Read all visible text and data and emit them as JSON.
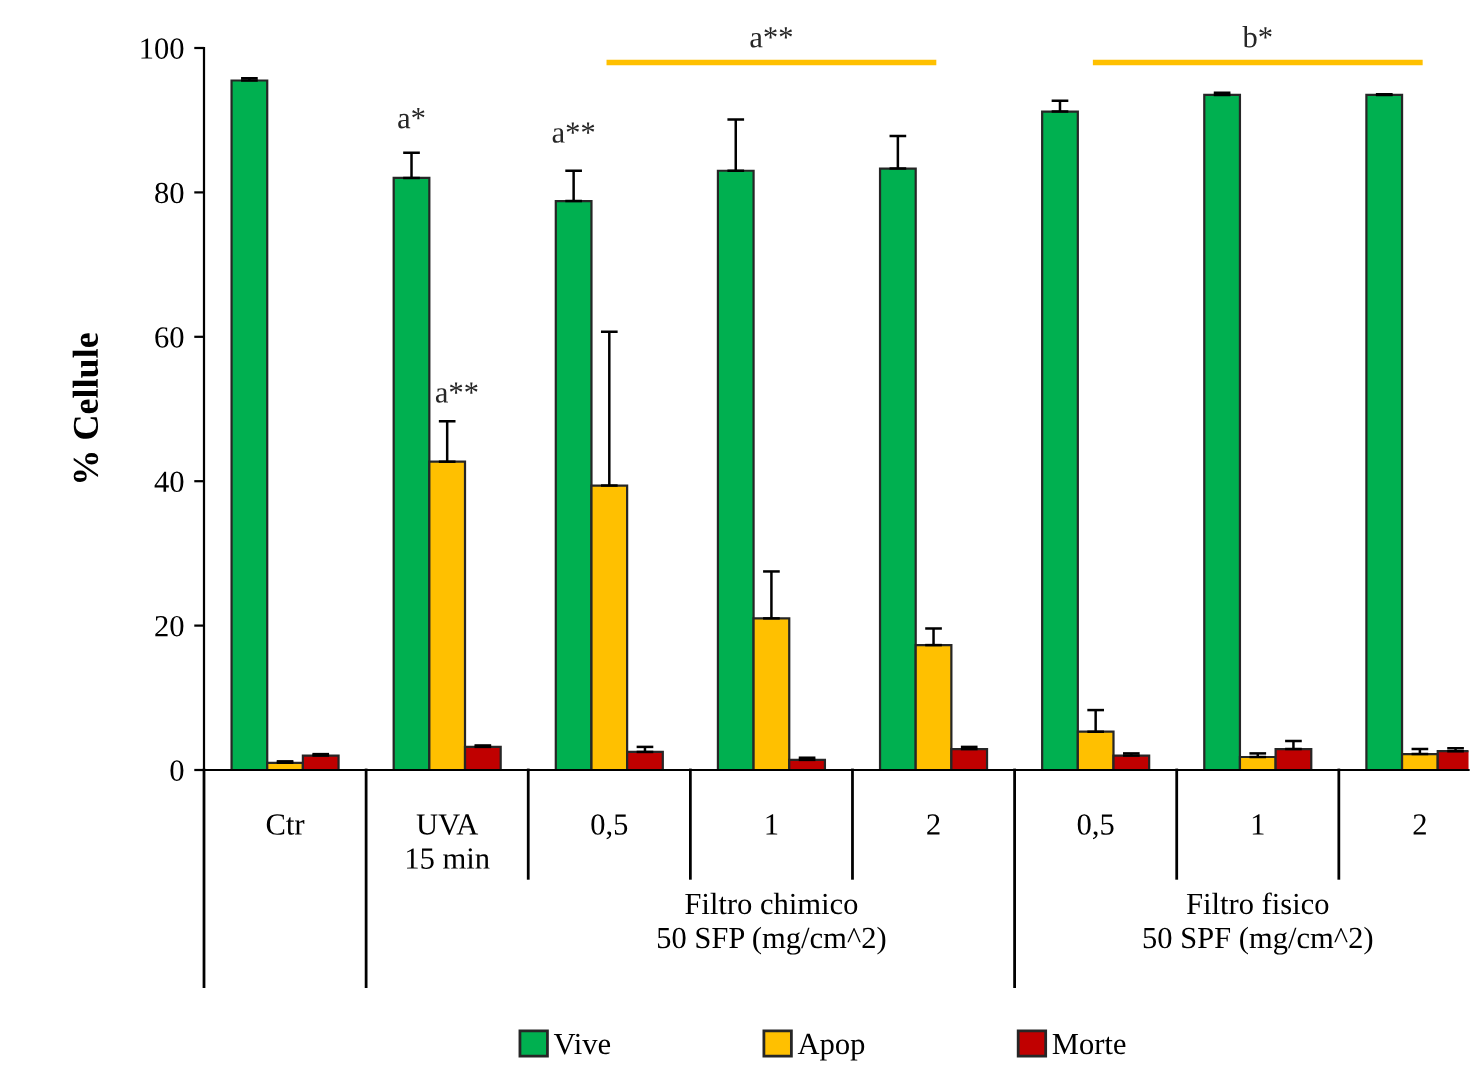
{
  "chart_data": {
    "type": "bar",
    "ylabel": "% Cellule",
    "categories": [
      "Ctr",
      "UVA\n15 min",
      "0,5",
      "1",
      "2",
      "0,5",
      "1",
      "2"
    ],
    "series": [
      {
        "name": "Vive",
        "color": "#00b050",
        "values": [
          95.5,
          82,
          78.8,
          83,
          83.3,
          91.2,
          93.5,
          93.5
        ],
        "errors": [
          [
            95.5,
            95.8
          ],
          [
            82,
            85.5
          ],
          [
            78.8,
            83
          ],
          [
            83,
            90.1
          ],
          [
            83.3,
            87.8
          ],
          [
            91.2,
            92.7
          ],
          [
            93.5,
            93.8
          ],
          [
            93.5,
            93.6
          ]
        ]
      },
      {
        "name": "Apop",
        "color": "#ffc000",
        "values": [
          1,
          42.7,
          39.4,
          21,
          17.3,
          5.3,
          1.8,
          2.2
        ],
        "errors": [
          [
            1,
            1.2
          ],
          [
            42.7,
            48.3
          ],
          [
            39.4,
            60.7
          ],
          [
            21,
            27.5
          ],
          [
            17.3,
            19.6
          ],
          [
            5.3,
            8.3
          ],
          [
            1.8,
            2.3
          ],
          [
            2.2,
            2.9
          ]
        ]
      },
      {
        "name": "Morte",
        "color": "#c00000",
        "values": [
          2,
          3.2,
          2.5,
          1.4,
          2.9,
          2,
          2.9,
          2.6
        ],
        "errors": [
          [
            2,
            2.2
          ],
          [
            3.2,
            3.4
          ],
          [
            2.5,
            3.2
          ],
          [
            1.4,
            1.7
          ],
          [
            2.9,
            3.2
          ],
          [
            2,
            2.3
          ],
          [
            2.9,
            4
          ],
          [
            2.6,
            3
          ]
        ]
      }
    ],
    "ylim": [
      0,
      100
    ],
    "yticks": [
      0,
      20,
      40,
      60,
      80,
      100
    ],
    "grid": false,
    "legend": "bottom",
    "annotations": [
      "a**",
      "b*",
      "a*",
      "a**",
      "a**",
      "Filtro chimico\n50 SFP (mg/cm^2)",
      "Filtro fisico\n50 SPF (mg/cm^2)"
    ]
  }
}
